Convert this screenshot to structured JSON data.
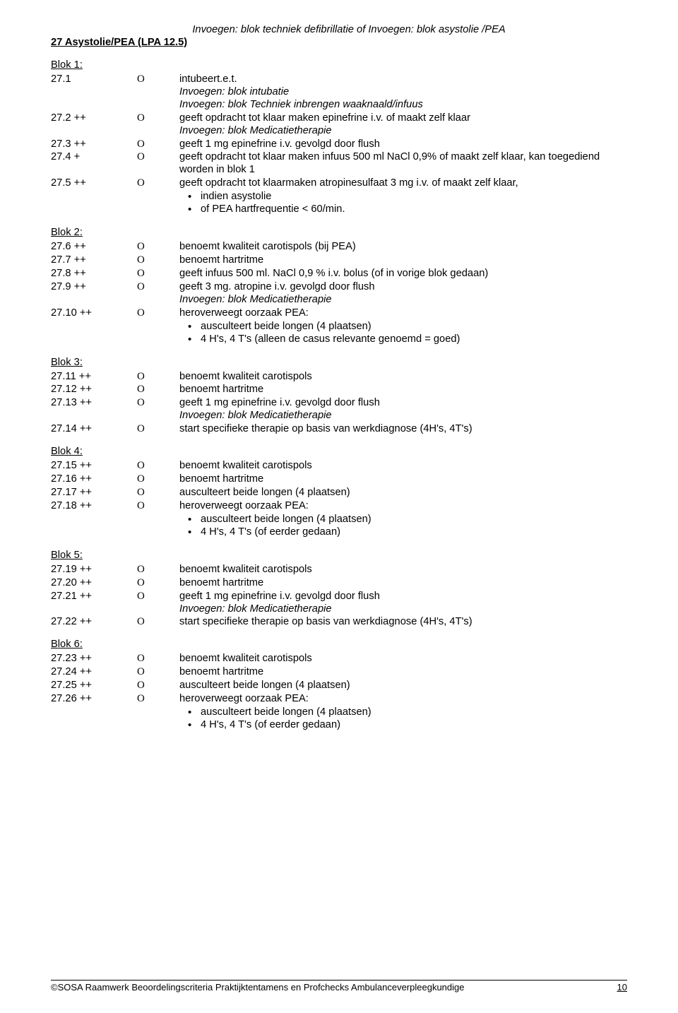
{
  "header_insert": "Invoegen: blok techniek defibrillatie  of Invoegen: blok asystolie /PEA",
  "section_title": "27 Asystolie/PEA (LPA 12.5)",
  "footer_text": "©SOSA Raamwerk Beoordelingscriteria Praktijktentamens en Profchecks Ambulanceverpleegkundige",
  "page_number": "10",
  "o_glyph": "O",
  "blocks": [
    {
      "title": "Blok 1:",
      "items": [
        {
          "num": "27.1",
          "o": true,
          "text": "intubeert.e.t."
        },
        {
          "insert": "Invoegen: blok intubatie"
        },
        {
          "insert": "Invoegen: blok Techniek inbrengen waaknaald/infuus"
        },
        {
          "num": "27.2 ++",
          "o": true,
          "text": "geeft opdracht tot klaar maken epinefrine i.v. of maakt zelf klaar"
        },
        {
          "insert": "Invoegen: blok Medicatietherapie"
        },
        {
          "num": "27.3 ++",
          "o": true,
          "text": "geeft 1 mg epinefrine i.v. gevolgd door flush"
        },
        {
          "num": "27.4 +",
          "o": true,
          "text": "geeft opdracht tot klaar maken infuus 500 ml NaCl 0,9% of maakt zelf klaar, kan toegediend worden in blok 1"
        },
        {
          "num": "27.5 ++",
          "o": true,
          "text": "geeft opdracht tot klaarmaken atropinesulfaat 3 mg i.v. of maakt zelf klaar,",
          "bullets": [
            "indien asystolie",
            "of PEA hartfrequentie < 60/min."
          ]
        }
      ]
    },
    {
      "title": "Blok 2:",
      "items": [
        {
          "num": "27.6 ++",
          "o": true,
          "text": "benoemt kwaliteit carotispols (bij PEA)"
        },
        {
          "num": "27.7 ++",
          "o": true,
          "text": "benoemt hartritme"
        },
        {
          "num": "27.8 ++",
          "o": true,
          "text": "geeft infuus 500 ml. NaCl 0,9 % i.v. bolus (of in vorige blok gedaan)"
        },
        {
          "num": "27.9 ++",
          "o": true,
          "text": "geeft 3 mg. atropine i.v. gevolgd door flush"
        },
        {
          "insert": "Invoegen: blok Medicatietherapie"
        },
        {
          "num": "27.10 ++",
          "o": true,
          "text": "heroverweegt oorzaak PEA:",
          "bullets": [
            "ausculteert beide longen (4 plaatsen)",
            "4 H's, 4 T's (alleen de casus relevante genoemd =  goed)"
          ]
        }
      ]
    },
    {
      "title": "Blok 3:",
      "items": [
        {
          "num": "27.11 ++",
          "o": true,
          "text": "benoemt kwaliteit carotispols"
        },
        {
          "num": "27.12 ++",
          "o": true,
          "text": "benoemt hartritme"
        },
        {
          "num": "27.13 ++",
          "o": true,
          "text": "geeft 1 mg epinefrine i.v. gevolgd door flush"
        },
        {
          "insert": "Invoegen: blok Medicatietherapie"
        },
        {
          "num": "27.14 ++",
          "o": true,
          "text": "start specifieke therapie op basis van werkdiagnose (4H's, 4T's)"
        }
      ]
    },
    {
      "title": "Blok 4:",
      "items": [
        {
          "num": "27.15 ++",
          "o": true,
          "text": "benoemt kwaliteit carotispols"
        },
        {
          "num": "27.16 ++",
          "o": true,
          "text": "benoemt hartritme"
        },
        {
          "num": "27.17 ++",
          "o": true,
          "text": "ausculteert beide longen (4 plaatsen)"
        },
        {
          "num": "27.18 ++",
          "o": true,
          "text": "heroverweegt oorzaak PEA:",
          "bullets": [
            "ausculteert beide longen (4 plaatsen)",
            "4 H's, 4 T's (of eerder gedaan)"
          ]
        }
      ]
    },
    {
      "title": "Blok 5:",
      "items": [
        {
          "num": "27.19 ++",
          "o": true,
          "text": "benoemt kwaliteit carotispols"
        },
        {
          "num": "27.20 ++",
          "o": true,
          "text": "benoemt hartritme"
        },
        {
          "num": "27.21 ++",
          "o": true,
          "text": "geeft 1 mg epinefrine i.v. gevolgd door flush"
        },
        {
          "insert": "Invoegen: blok Medicatietherapie"
        },
        {
          "num": "27.22 ++",
          "o": true,
          "text": "start specifieke therapie op basis van werkdiagnose (4H's, 4T's)"
        }
      ]
    },
    {
      "title": "Blok 6:",
      "items": [
        {
          "num": "27.23 ++",
          "o": true,
          "text": "benoemt kwaliteit carotispols"
        },
        {
          "num": "27.24 ++",
          "o": true,
          "text": "benoemt hartritme"
        },
        {
          "num": "27.25 ++",
          "o": true,
          "text": "ausculteert beide longen (4 plaatsen)"
        },
        {
          "num": "27.26 ++",
          "o": true,
          "text": "heroverweegt oorzaak PEA:",
          "bullets": [
            "ausculteert beide longen (4 plaatsen)",
            "4 H's, 4 T's (of eerder gedaan)"
          ]
        }
      ]
    }
  ]
}
